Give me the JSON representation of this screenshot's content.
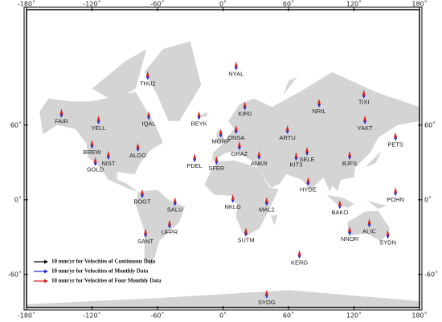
{
  "chart_data": {
    "type": "map",
    "xlim": [
      -180,
      180
    ],
    "ylim": [
      -73,
      86
    ],
    "xticks": [
      {
        "value": -180,
        "label": "-180˚"
      },
      {
        "value": -120,
        "label": "-120˚"
      },
      {
        "value": -60,
        "label": "-60˚"
      },
      {
        "value": 0,
        "label": "0˚"
      },
      {
        "value": 60,
        "label": "60˚"
      },
      {
        "value": 120,
        "label": "120˚"
      },
      {
        "value": 180,
        "label": "180˚"
      }
    ],
    "yticks": [
      {
        "value": -60,
        "label": "-60˚"
      },
      {
        "value": 0,
        "label": "0˚"
      },
      {
        "value": 60,
        "label": "60˚"
      }
    ],
    "stations": [
      {
        "name": "NYAL",
        "lon": 12,
        "lat": 79
      },
      {
        "name": "THU2",
        "lon": -69,
        "lat": 77
      },
      {
        "name": "FAIR",
        "lon": -148,
        "lat": 65
      },
      {
        "name": "YELL",
        "lon": -114,
        "lat": 62
      },
      {
        "name": "IQAL",
        "lon": -68,
        "lat": 64
      },
      {
        "name": "REYK",
        "lon": -22,
        "lat": 64
      },
      {
        "name": "KIR0",
        "lon": 20,
        "lat": 68
      },
      {
        "name": "NRIL",
        "lon": 88,
        "lat": 69
      },
      {
        "name": "TIXI",
        "lon": 129,
        "lat": 72
      },
      {
        "name": "YAKT",
        "lon": 130,
        "lat": 62
      },
      {
        "name": "PETS",
        "lon": 158,
        "lat": 53
      },
      {
        "name": "ONSA",
        "lon": 12,
        "lat": 57
      },
      {
        "name": "MORP",
        "lon": -2,
        "lat": 55
      },
      {
        "name": "ARTU",
        "lon": 59,
        "lat": 57
      },
      {
        "name": "BREW",
        "lon": -120,
        "lat": 48
      },
      {
        "name": "ALGO",
        "lon": -78,
        "lat": 46
      },
      {
        "name": "NIST",
        "lon": -105,
        "lat": 40
      },
      {
        "name": "GOLD",
        "lon": -117,
        "lat": 35
      },
      {
        "name": "GRAZ",
        "lon": 15,
        "lat": 47
      },
      {
        "name": "PDEL",
        "lon": -26,
        "lat": 38
      },
      {
        "name": "SFER",
        "lon": -6,
        "lat": 36
      },
      {
        "name": "ANKR",
        "lon": 33,
        "lat": 40
      },
      {
        "name": "KIT3",
        "lon": 67,
        "lat": 39
      },
      {
        "name": "SELE",
        "lon": 77,
        "lat": 43
      },
      {
        "name": "BJFS",
        "lon": 116,
        "lat": 40
      },
      {
        "name": "HYDE",
        "lon": 78,
        "lat": 17
      },
      {
        "name": "POHN",
        "lon": 158,
        "lat": 7
      },
      {
        "name": "BOGT",
        "lon": -74,
        "lat": 5
      },
      {
        "name": "SALU",
        "lon": -44,
        "lat": -3
      },
      {
        "name": "NKLG",
        "lon": 9,
        "lat": 0
      },
      {
        "name": "MAL2",
        "lon": 40,
        "lat": -3
      },
      {
        "name": "BAKO",
        "lon": 107,
        "lat": -6
      },
      {
        "name": "UFPR",
        "lon": -49,
        "lat": -25
      },
      {
        "name": "SANT",
        "lon": -71,
        "lat": -33
      },
      {
        "name": "SUTM",
        "lon": 21,
        "lat": -32
      },
      {
        "name": "ALIC",
        "lon": 134,
        "lat": -24
      },
      {
        "name": "NNOR",
        "lon": 116,
        "lat": -31
      },
      {
        "name": "SYDN",
        "lon": 151,
        "lat": -34
      },
      {
        "name": "KERG",
        "lon": 70,
        "lat": -49
      },
      {
        "name": "SYOG",
        "lon": 40,
        "lat": -69
      }
    ],
    "legend": [
      {
        "label": "10 mm/yr for Velocities of Continuous Data",
        "color": "#000000"
      },
      {
        "label": "10 mm/yr for Velocities of Monthly Data",
        "color": "#1f2bd6"
      },
      {
        "label": "10 mm/yr for Velocities of Four Monthly Data",
        "color": "#d62020"
      }
    ]
  }
}
